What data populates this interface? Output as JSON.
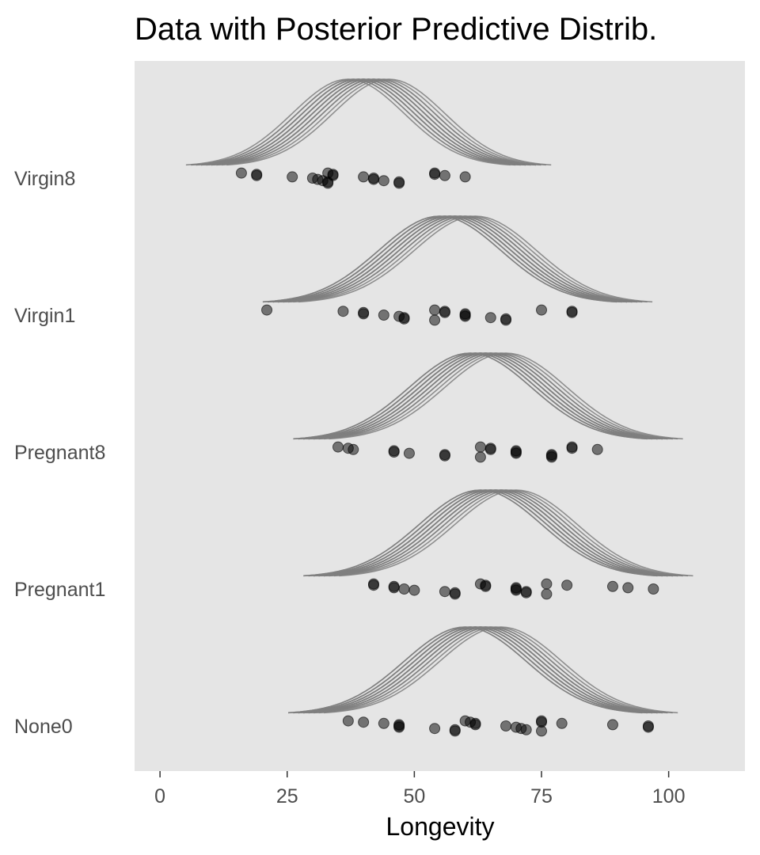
{
  "chart_data": {
    "type": "scatter",
    "title": "Data with Posterior Predictive Distrib.",
    "xlabel": "Longevity",
    "ylabel": "",
    "xlim": [
      -5,
      115
    ],
    "x_ticks": [
      0,
      25,
      50,
      75,
      100
    ],
    "x_tick_labels": [
      "0",
      "25",
      "50",
      "75",
      "100"
    ],
    "categories": [
      "Virgin8",
      "Virgin1",
      "Pregnant8",
      "Pregnant1",
      "None0"
    ],
    "grid": false,
    "legend": "none",
    "colors": {
      "panel_background": "#e5e5e5",
      "points": "#000000",
      "curves": "#7f7f7f"
    },
    "series": [
      {
        "category": "Virgin8",
        "points": [
          16,
          19,
          19,
          26,
          30,
          31,
          32,
          33,
          33,
          33,
          34,
          34,
          40,
          42,
          42,
          44,
          47,
          47,
          54,
          54,
          56,
          60
        ],
        "curve_means": [
          39,
          40,
          41,
          42,
          38,
          43,
          40,
          39,
          44,
          41,
          37,
          40,
          42,
          38,
          45,
          41,
          39,
          43,
          40,
          42
        ],
        "curve_sd": 11
      },
      {
        "category": "Virgin1",
        "points": [
          21,
          36,
          40,
          40,
          44,
          47,
          48,
          48,
          54,
          54,
          56,
          56,
          60,
          60,
          60,
          65,
          68,
          68,
          75,
          81,
          81
        ],
        "curve_means": [
          57,
          58,
          59,
          56,
          60,
          55,
          57,
          58,
          61,
          56,
          59,
          57,
          62,
          58,
          55,
          60,
          57,
          56,
          59,
          58
        ],
        "curve_sd": 12
      },
      {
        "category": "Pregnant8",
        "points": [
          35,
          37,
          38,
          46,
          46,
          49,
          56,
          56,
          63,
          63,
          65,
          65,
          70,
          70,
          70,
          77,
          77,
          77,
          81,
          81,
          86
        ],
        "curve_means": [
          63,
          64,
          65,
          62,
          66,
          61,
          63,
          64,
          67,
          62,
          65,
          63,
          68,
          64,
          61,
          66,
          63,
          62,
          65,
          64
        ],
        "curve_sd": 12
      },
      {
        "category": "Pregnant1",
        "points": [
          42,
          42,
          46,
          46,
          48,
          50,
          56,
          58,
          58,
          63,
          64,
          64,
          70,
          70,
          70,
          72,
          72,
          76,
          76,
          80,
          89,
          92,
          97
        ],
        "curve_means": [
          65,
          66,
          67,
          64,
          68,
          63,
          65,
          66,
          69,
          64,
          67,
          65,
          70,
          66,
          63,
          68,
          65,
          64,
          67,
          66
        ],
        "curve_sd": 12
      },
      {
        "category": "None0",
        "points": [
          37,
          40,
          44,
          47,
          47,
          47,
          54,
          58,
          58,
          60,
          61,
          62,
          62,
          68,
          70,
          71,
          72,
          75,
          75,
          75,
          79,
          89,
          96,
          96
        ],
        "curve_means": [
          62,
          63,
          64,
          61,
          65,
          60,
          62,
          63,
          66,
          61,
          64,
          62,
          67,
          63,
          60,
          65,
          62,
          61,
          64,
          63
        ],
        "curve_sd": 12
      }
    ]
  }
}
